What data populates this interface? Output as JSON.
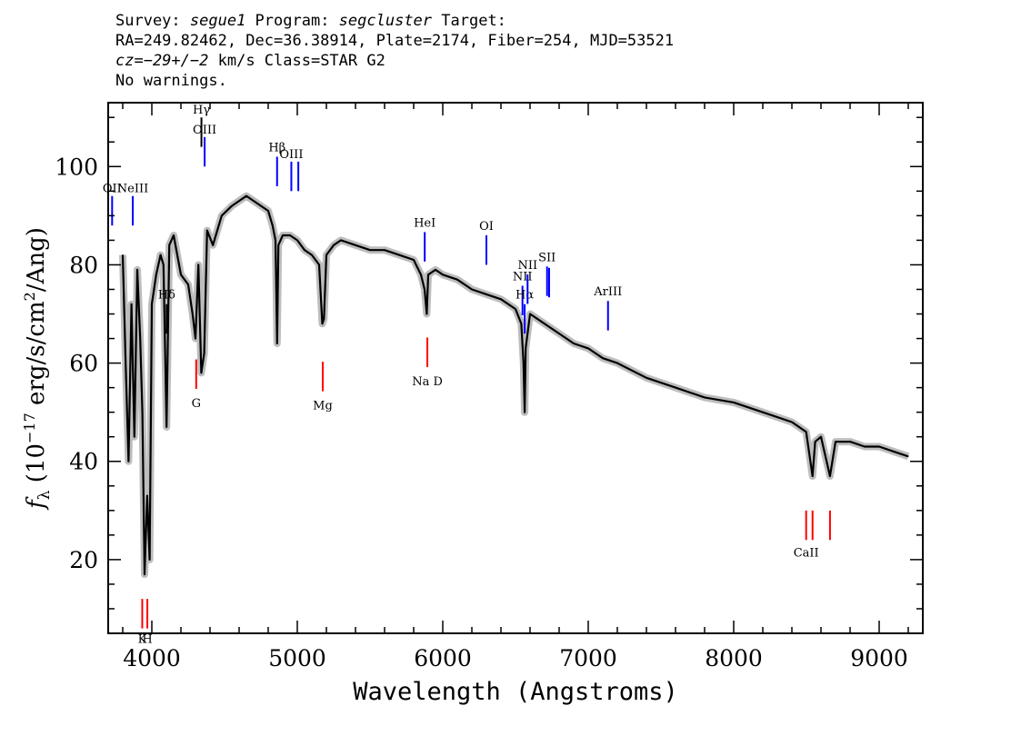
{
  "header": {
    "line1_prefix": "Survey: ",
    "survey": "segue1",
    "line1_mid": " Program: ",
    "program": "segcluster",
    "line1_suffix": " Target:",
    "line2": "RA=249.82462, Dec=36.38914, Plate=2174, Fiber=254, MJD=53521",
    "cz_label": "cz",
    "cz_value": "=−29+/−2",
    "cz_suffix": " km/s Class=STAR G2",
    "line4": "No warnings."
  },
  "chart_data": {
    "type": "line",
    "title": "",
    "xlabel": "Wavelength (Angstroms)",
    "ylabel_main": "f",
    "ylabel_sub": "λ",
    "ylabel_rest": " (10",
    "ylabel_exp": "−17",
    "ylabel_mid": " erg/s/cm",
    "ylabel_exp2": "2",
    "ylabel_end": "/Ang)",
    "xlim": [
      3700,
      9300
    ],
    "ylim": [
      5,
      113
    ],
    "x_ticks": [
      4000,
      5000,
      6000,
      7000,
      8000,
      9000
    ],
    "x_tick_labels": [
      "4000",
      "5000",
      "6000",
      "7000",
      "8000",
      "9000"
    ],
    "y_ticks": [
      20,
      40,
      60,
      80,
      100
    ],
    "y_tick_labels": [
      "20",
      "40",
      "60",
      "80",
      "100"
    ],
    "grid": false,
    "series": [
      {
        "color": "#000000",
        "x": [
          3800,
          3820,
          3840,
          3860,
          3880,
          3900,
          3920,
          3935,
          3950,
          3968,
          3985,
          4000,
          4030,
          4060,
          4080,
          4101,
          4120,
          4150,
          4200,
          4250,
          4280,
          4300,
          4320,
          4340,
          4360,
          4380,
          4420,
          4480,
          4550,
          4600,
          4650,
          4700,
          4750,
          4800,
          4830,
          4850,
          4861,
          4870,
          4900,
          4950,
          5000,
          5050,
          5100,
          5150,
          5172,
          5183,
          5200,
          5250,
          5300,
          5400,
          5500,
          5600,
          5700,
          5800,
          5850,
          5875,
          5890,
          5900,
          5950,
          6000,
          6100,
          6200,
          6300,
          6400,
          6500,
          6540,
          6555,
          6563,
          6570,
          6600,
          6700,
          6800,
          6900,
          7000,
          7100,
          7200,
          7400,
          7600,
          7800,
          8000,
          8200,
          8400,
          8498,
          8542,
          8560,
          8600,
          8662,
          8700,
          8800,
          8900,
          9000,
          9100,
          9200
        ],
        "y": [
          82,
          60,
          40,
          72,
          45,
          79,
          65,
          50,
          17,
          33,
          20,
          72,
          78,
          82,
          80,
          47,
          84,
          86,
          78,
          76,
          70,
          65,
          80,
          58,
          62,
          87,
          84,
          90,
          92,
          93,
          94,
          93,
          92,
          91,
          88,
          85,
          64,
          84,
          86,
          86,
          85,
          83,
          82,
          80,
          68,
          69,
          82,
          84,
          85,
          84,
          83,
          83,
          82,
          81,
          78,
          75,
          70,
          78,
          79,
          78,
          77,
          75,
          74,
          73,
          71,
          68,
          60,
          50,
          63,
          70,
          68,
          66,
          64,
          63,
          61,
          60,
          57,
          55,
          53,
          52,
          50,
          48,
          46,
          37,
          44,
          45,
          37,
          44,
          44,
          43,
          43,
          42,
          41
        ]
      }
    ],
    "lines": [
      {
        "label": "OII",
        "wave": 3727,
        "color": "#0000ff"
      },
      {
        "label": "NeIII",
        "wave": 3869,
        "color": "#0000ff"
      },
      {
        "label": "Hδ",
        "wave": 4102,
        "color": "#000000"
      },
      {
        "label": "Hγ",
        "wave": 4341,
        "color": "#000000"
      },
      {
        "label": "OIII",
        "wave": 4363,
        "color": "#0000ff"
      },
      {
        "label": "Hβ",
        "wave": 4861,
        "color": "#0000ff"
      },
      {
        "label": "OIII",
        "wave": 4959,
        "color": "#0000ff"
      },
      {
        "label": "",
        "wave": 5007,
        "color": "#0000ff"
      },
      {
        "label": "HeI",
        "wave": 5876,
        "color": "#0000ff"
      },
      {
        "label": "OI",
        "wave": 6300,
        "color": "#0000ff"
      },
      {
        "label": "NII",
        "wave": 6548,
        "color": "#0000ff"
      },
      {
        "label": "Hα",
        "wave": 6563,
        "color": "#0000ff"
      },
      {
        "label": "NII",
        "wave": 6583,
        "color": "#0000ff"
      },
      {
        "label": "SII",
        "wave": 6717,
        "color": "#0000ff"
      },
      {
        "label": "",
        "wave": 6731,
        "color": "#0000ff"
      },
      {
        "label": "ArIII",
        "wave": 7136,
        "color": "#0000ff"
      },
      {
        "label": "K",
        "wave": 3934,
        "color": "#ff0000"
      },
      {
        "label": "H",
        "wave": 3969,
        "color": "#ff0000"
      },
      {
        "label": "G",
        "wave": 4305,
        "color": "#ff0000"
      },
      {
        "label": "Mg",
        "wave": 5175,
        "color": "#ff0000"
      },
      {
        "label": "Na D",
        "wave": 5894,
        "color": "#ff0000"
      },
      {
        "label": "CaII",
        "wave": 8498,
        "color": "#ff0000"
      },
      {
        "label": "",
        "wave": 8542,
        "color": "#ff0000"
      },
      {
        "label": "",
        "wave": 8662,
        "color": "#ff0000"
      }
    ]
  }
}
